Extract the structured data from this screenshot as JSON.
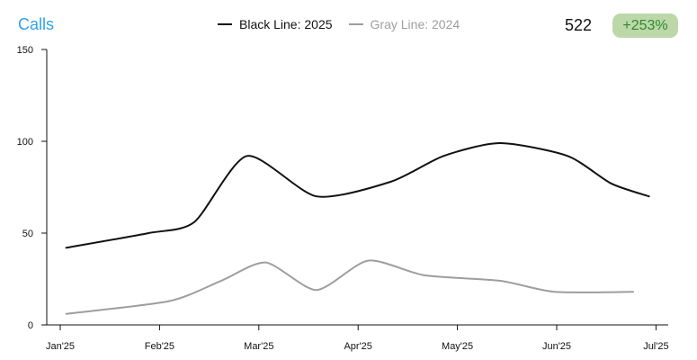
{
  "header": {
    "title": "Calls",
    "total": "522",
    "change_badge": "+253%"
  },
  "legend": {
    "black_label": "Black Line: 2025",
    "gray_label": "Gray Line: 2024"
  },
  "colors": {
    "title": "#2ea3e6",
    "series_2025": "#111111",
    "series_2024": "#9e9e9e",
    "badge_bg": "#bcd8a9",
    "badge_text": "#2e8a2e"
  },
  "chart_data": {
    "type": "line",
    "x_ticks": [
      "Jan'25",
      "Feb'25",
      "Mar'25",
      "Apr'25",
      "May'25",
      "Jun'25",
      "Jul'25"
    ],
    "y_ticks": [
      0,
      50,
      100,
      150
    ],
    "ylim": [
      0,
      150
    ],
    "xlim": [
      0,
      6.2
    ],
    "series": [
      {
        "name": "Black Line: 2025",
        "color": "#111111",
        "points": [
          {
            "x": 0.06,
            "y": 42
          },
          {
            "x": 0.89,
            "y": 50
          },
          {
            "x": 1.35,
            "y": 56
          },
          {
            "x": 1.88,
            "y": 92
          },
          {
            "x": 2.58,
            "y": 70
          },
          {
            "x": 3.33,
            "y": 78
          },
          {
            "x": 3.86,
            "y": 92
          },
          {
            "x": 4.43,
            "y": 99
          },
          {
            "x": 5.11,
            "y": 92
          },
          {
            "x": 5.55,
            "y": 77
          },
          {
            "x": 5.93,
            "y": 70
          }
        ]
      },
      {
        "name": "Gray Line: 2024",
        "color": "#9e9e9e",
        "points": [
          {
            "x": 0.06,
            "y": 6
          },
          {
            "x": 1.1,
            "y": 13
          },
          {
            "x": 1.62,
            "y": 24
          },
          {
            "x": 2.07,
            "y": 34
          },
          {
            "x": 2.58,
            "y": 19
          },
          {
            "x": 3.1,
            "y": 35
          },
          {
            "x": 3.67,
            "y": 27
          },
          {
            "x": 4.43,
            "y": 24
          },
          {
            "x": 4.98,
            "y": 18
          },
          {
            "x": 5.77,
            "y": 18
          }
        ]
      }
    ]
  }
}
